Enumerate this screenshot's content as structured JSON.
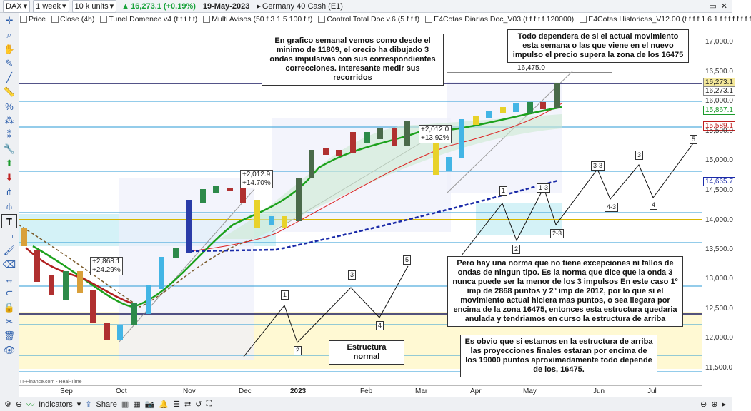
{
  "topbar": {
    "symbol": "DAX",
    "interval": "1 week",
    "units": "10 k units",
    "change": "16,273.1 (+0.19%)",
    "date": "19-May-2023",
    "instrument": "Germany 40 Cash (E1)"
  },
  "indicators": [
    "Price",
    "Close (4h)",
    "Tunel Domenec v4 (t t t t t)",
    "Multi Avisos (50 f 3 1.5 100 f f)",
    "Control Total Doc v.6 (5 f f f)",
    "E4Cotas Diarias Doc_V03 (t f f t f 120000)",
    "E4Cotas Historicas_V12.00 (t f f f 1 6 1 f f f f f f f f"
  ],
  "notes": {
    "n1": "En grafico semanal vemos como desde el minimo de 11809, el orecio ha dibujado 3 ondas impulsivas con sus correspondientes correcciones. Interesante medir sus recorridos",
    "n2": "Todo dependera de si el actual movimiento esta semana o las que viene en el nuevo impulso el precio supera la zona de los 16475",
    "n3": "Pero hay una norma que no tiene excepciones ni fallos de ondas de ningun tipo. Es la norma que dice que la onda 3 nunca puede ser la menor de los 3 impulsos En este caso 1º imp de 2868 puntos y 2º imp de 2012, por lo que si el movimiento actual hiciera mas puntos, o sea llegara por encima de la zona 16475, entonces esta estructura quedaria anulada y tendriamos en curso la estructura de arriba",
    "n4": "Es obvio que si estamos en la estructura de arriba las proyecciones finales estaran por encima de los 19000 puntos aproximadamente todo depende de los, 16475.",
    "n5": "Estructura normal"
  },
  "measures": {
    "m1a": "+2,868.1",
    "m1b": "+24.29%",
    "m2a": "+2,012.9",
    "m2b": "+14.70%",
    "m3a": "+2,012.0",
    "m3b": "+13.92%",
    "level": "16,475.0"
  },
  "waves": {
    "w1": "1",
    "w2": "2",
    "w3": "3",
    "w4": "4",
    "w5": "5",
    "u1": "1",
    "u2": "2",
    "u13": "1-3",
    "u23": "2-3",
    "u33": "3-3",
    "u43": "4-3",
    "u3": "3",
    "u4": "4",
    "u5": "5"
  },
  "yaxis": {
    "l17000": "17,000.0",
    "l16500": "16,500.0",
    "l16000": "16,000.0",
    "l15500": "15,500.0",
    "l15000": "15,000.0",
    "l14500": "14,500.0",
    "l14000": "14,000.0",
    "l13500": "13,500.0",
    "l13000": "13,000.0",
    "l12500": "12,500.0",
    "l12000": "12,000.0",
    "l11500": "11,500.0",
    "t1": "16,273.1",
    "t2": "16,273.1",
    "t3": "15,867.1",
    "t4": "15,589.1",
    "t5": "14,665.7"
  },
  "xaxis": {
    "sep": "Sep",
    "oct": "Oct",
    "nov": "Nov",
    "dec": "Dec",
    "y2023": "2023",
    "feb": "Feb",
    "mar": "Mar",
    "apr": "Apr",
    "may": "May",
    "jun": "Jun",
    "jul": "Jul"
  },
  "source": "IT-Finance.com - Real-Time",
  "bottom": {
    "indicators_label": "Indicators",
    "share_label": "Share"
  },
  "colors": {
    "bull": "#2d8a4a",
    "bear": "#b03030",
    "green_line": "#1ca11c",
    "blue_dash": "#1a2aa8",
    "hline": "#2a9ad6"
  }
}
